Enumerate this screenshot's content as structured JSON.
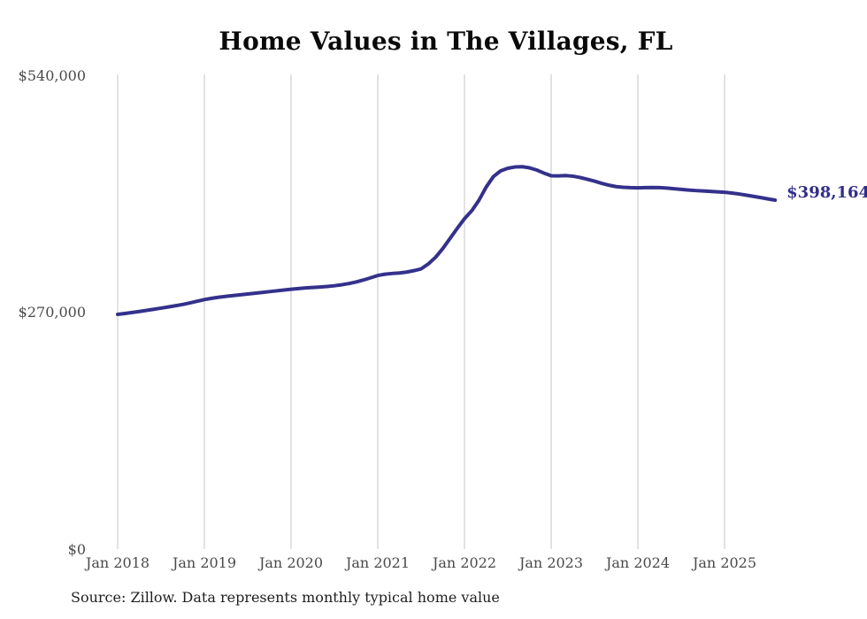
{
  "title": "Home Values in The Villages, FL",
  "source_note": "Source: Zillow. Data represents monthly typical home value",
  "end_label": "$398,164",
  "colors": {
    "line": "#34318c",
    "end_label": "#312e8a",
    "grid": "#c6c6c6",
    "title_text": "#0a0a0a",
    "tick_text": "#4a4a4a",
    "source_text": "#1f1f1f",
    "background": "#ffffff"
  },
  "chart_data": {
    "type": "line",
    "title": "Home Values in The Villages, FL",
    "xlabel": "",
    "ylabel": "",
    "x_start": "Jan 2018",
    "x_end": "Aug 2025",
    "x_frequency": "monthly",
    "x_tick_labels": [
      "Jan 2018",
      "Jan 2019",
      "Jan 2020",
      "Jan 2021",
      "Jan 2022",
      "Jan 2023",
      "Jan 2024",
      "Jan 2025"
    ],
    "y_ticks": [
      0,
      270000,
      540000
    ],
    "y_tick_labels": [
      "$0",
      "$270,000",
      "$540,000"
    ],
    "ylim": [
      0,
      540000
    ],
    "grid": "vertical-yearly-only",
    "legend": "none",
    "latest_value": 398164,
    "latest_value_label": "$398,164",
    "series": [
      {
        "name": "Typical home value",
        "values": [
          268000,
          269000,
          270100,
          271300,
          272500,
          273800,
          275100,
          276400,
          277800,
          279300,
          281000,
          282900,
          284800,
          286300,
          287500,
          288500,
          289400,
          290300,
          291200,
          292100,
          293000,
          293900,
          294800,
          295700,
          296600,
          297400,
          298100,
          298700,
          299200,
          299800,
          300600,
          301700,
          303100,
          304900,
          307100,
          309600,
          312300,
          313800,
          314600,
          315200,
          316200,
          317800,
          319800,
          325500,
          333000,
          343000,
          354500,
          366000,
          377000,
          386000,
          398000,
          413000,
          425000,
          431500,
          434500,
          436000,
          436300,
          435000,
          432500,
          429000,
          426000,
          425800,
          426200,
          425500,
          424000,
          422000,
          419800,
          417300,
          415200,
          413600,
          412800,
          412400,
          412200,
          412400,
          412600,
          412400,
          411900,
          411200,
          410400,
          409700,
          409100,
          408600,
          408100,
          407700,
          407200,
          406300,
          405200,
          403900,
          402500,
          401100,
          399600,
          398164
        ]
      }
    ]
  }
}
